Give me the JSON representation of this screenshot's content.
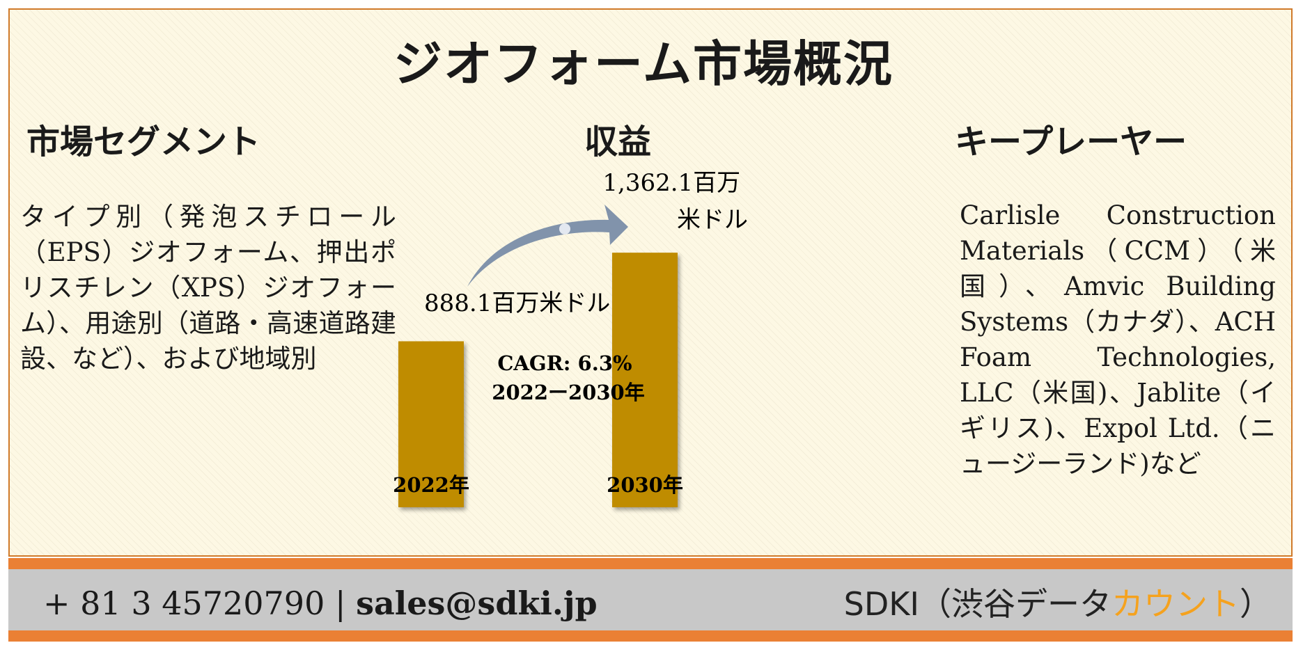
{
  "title": "ジオフォーム市場概況",
  "sections": {
    "segment": {
      "heading": "市場セグメント",
      "text": "タイプ別（発泡スチロール（EPS）ジオフォーム、押出ポリスチレン（XPS）ジオフォーム）、用途別（道路・高速道路建設、など）、および地域別"
    },
    "revenue": {
      "heading": "収益"
    },
    "key_players": {
      "heading": "キープレーヤー",
      "text": "Carlisle Construction Materials（CCM）（米国）、Amvic Building Systems（カナダ）、ACH Foam Technologies, LLC（米国)、Jablite（イギリス)、Expol Ltd.（ニュージーランド)など"
    }
  },
  "chart_data": {
    "type": "bar",
    "categories": [
      "2022年",
      "2030年"
    ],
    "values": [
      888.1,
      1362.1
    ],
    "value_labels": [
      "888.1百万米ドル",
      "1,362.1百万米ドル"
    ],
    "unit": "百万米ドル",
    "annotation": {
      "line1": "CAGR: 6.3%",
      "line2": "2022ー2030年"
    },
    "bar_color": "#bf8c00",
    "arrow_color": "#8193ab"
  },
  "footer": {
    "phone": "+ 81 3 45720790",
    "separator": "|",
    "email": "sales@sdki.jp",
    "brand_main": "SDKI（渋谷データ",
    "brand_accent": "カウント",
    "brand_end": "）",
    "bar_color": "#ea8034",
    "accent_color": "#f5a21e"
  }
}
